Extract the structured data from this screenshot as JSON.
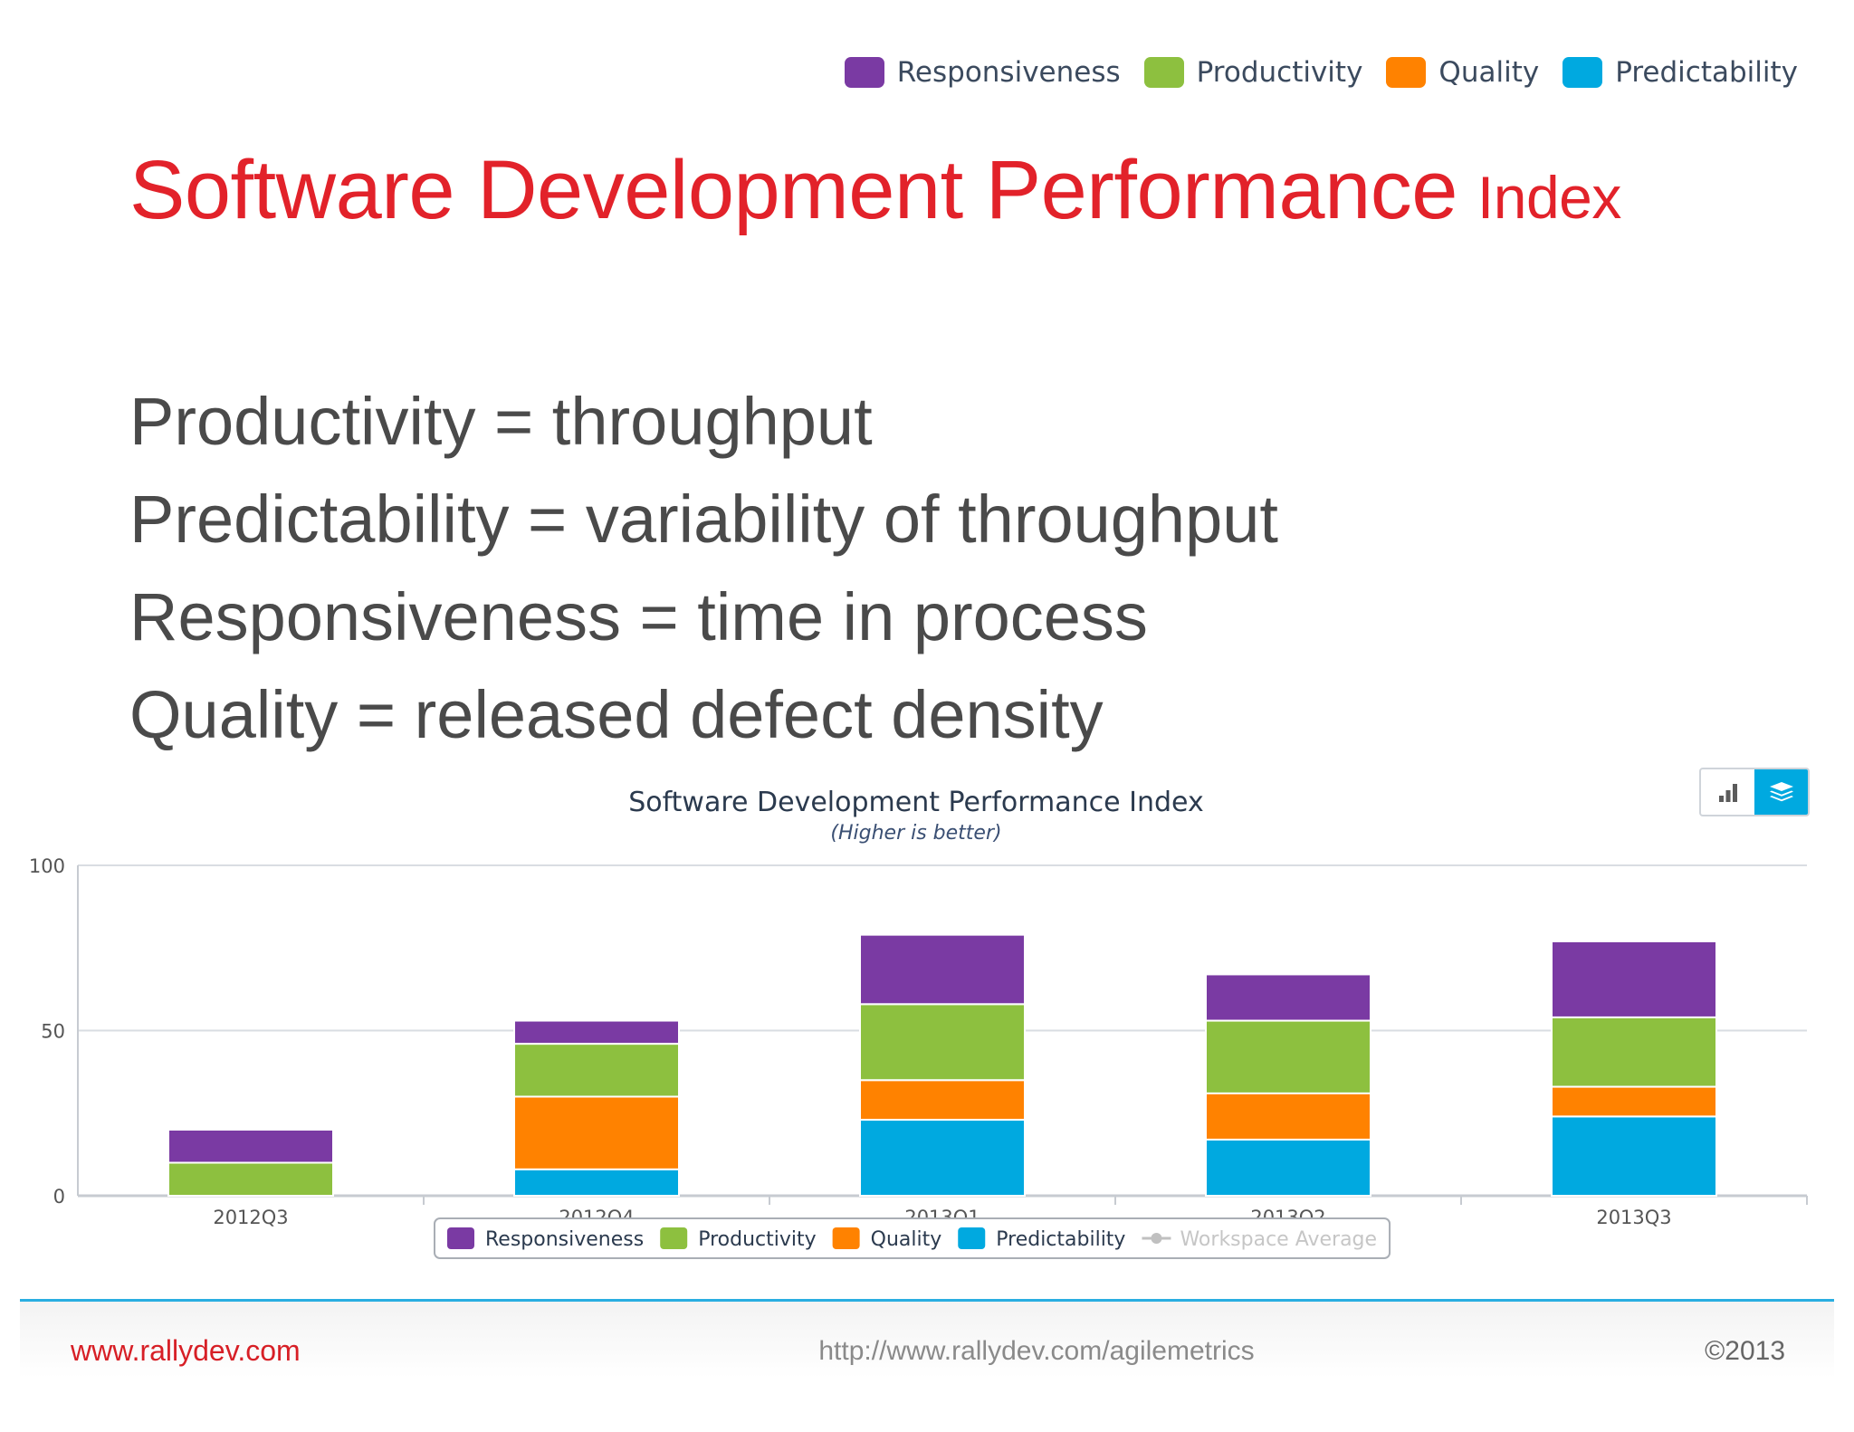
{
  "top_legend": [
    {
      "label": "Responsiveness",
      "color": "#7a3aa3"
    },
    {
      "label": "Productivity",
      "color": "#8dc03f"
    },
    {
      "label": "Quality",
      "color": "#ff8200"
    },
    {
      "label": "Predictability",
      "color": "#00a9e0"
    }
  ],
  "title": {
    "main": "Software Development Performance",
    "suffix": "Index"
  },
  "definitions": [
    "Productivity = throughput",
    "Predictability = variability of throughput",
    "Responsiveness = time in process",
    "Quality = released defect density"
  ],
  "chart_toggle": {
    "icons": [
      "bar-chart-icon",
      "stacked-layers-icon"
    ],
    "active": "stacked-layers-icon",
    "active_color": "#00a9e0"
  },
  "chart_data": {
    "type": "bar",
    "stacked": true,
    "title": "Software Development Performance Index",
    "subtitle": "(Higher is better)",
    "categories": [
      "2012Q3",
      "2012Q4",
      "2013Q1",
      "2013Q2",
      "2013Q3"
    ],
    "series": [
      {
        "name": "Predictability",
        "color": "#00a9e0",
        "values": [
          0,
          8,
          23,
          17,
          24
        ]
      },
      {
        "name": "Quality",
        "color": "#ff8200",
        "values": [
          0,
          22,
          12,
          14,
          9
        ]
      },
      {
        "name": "Productivity",
        "color": "#8dc03f",
        "values": [
          10,
          16,
          23,
          22,
          21
        ]
      },
      {
        "name": "Responsiveness",
        "color": "#7a3aa3",
        "values": [
          10,
          7,
          21,
          14,
          23
        ]
      }
    ],
    "ylim": [
      0,
      100
    ],
    "yticks": [
      0,
      50,
      100
    ],
    "grid": true,
    "legend": {
      "position": "bottom",
      "items": [
        {
          "label": "Responsiveness",
          "color": "#7a3aa3"
        },
        {
          "label": "Productivity",
          "color": "#8dc03f"
        },
        {
          "label": "Quality",
          "color": "#ff8200"
        },
        {
          "label": "Predictability",
          "color": "#00a9e0"
        },
        {
          "label": "Workspace Average",
          "color": "#c0c0c0",
          "disabled": true
        }
      ]
    }
  },
  "footer": {
    "left": "www.rallydev.com",
    "center": "http://www.rallydev.com/agilemetrics",
    "right": "©2013"
  }
}
